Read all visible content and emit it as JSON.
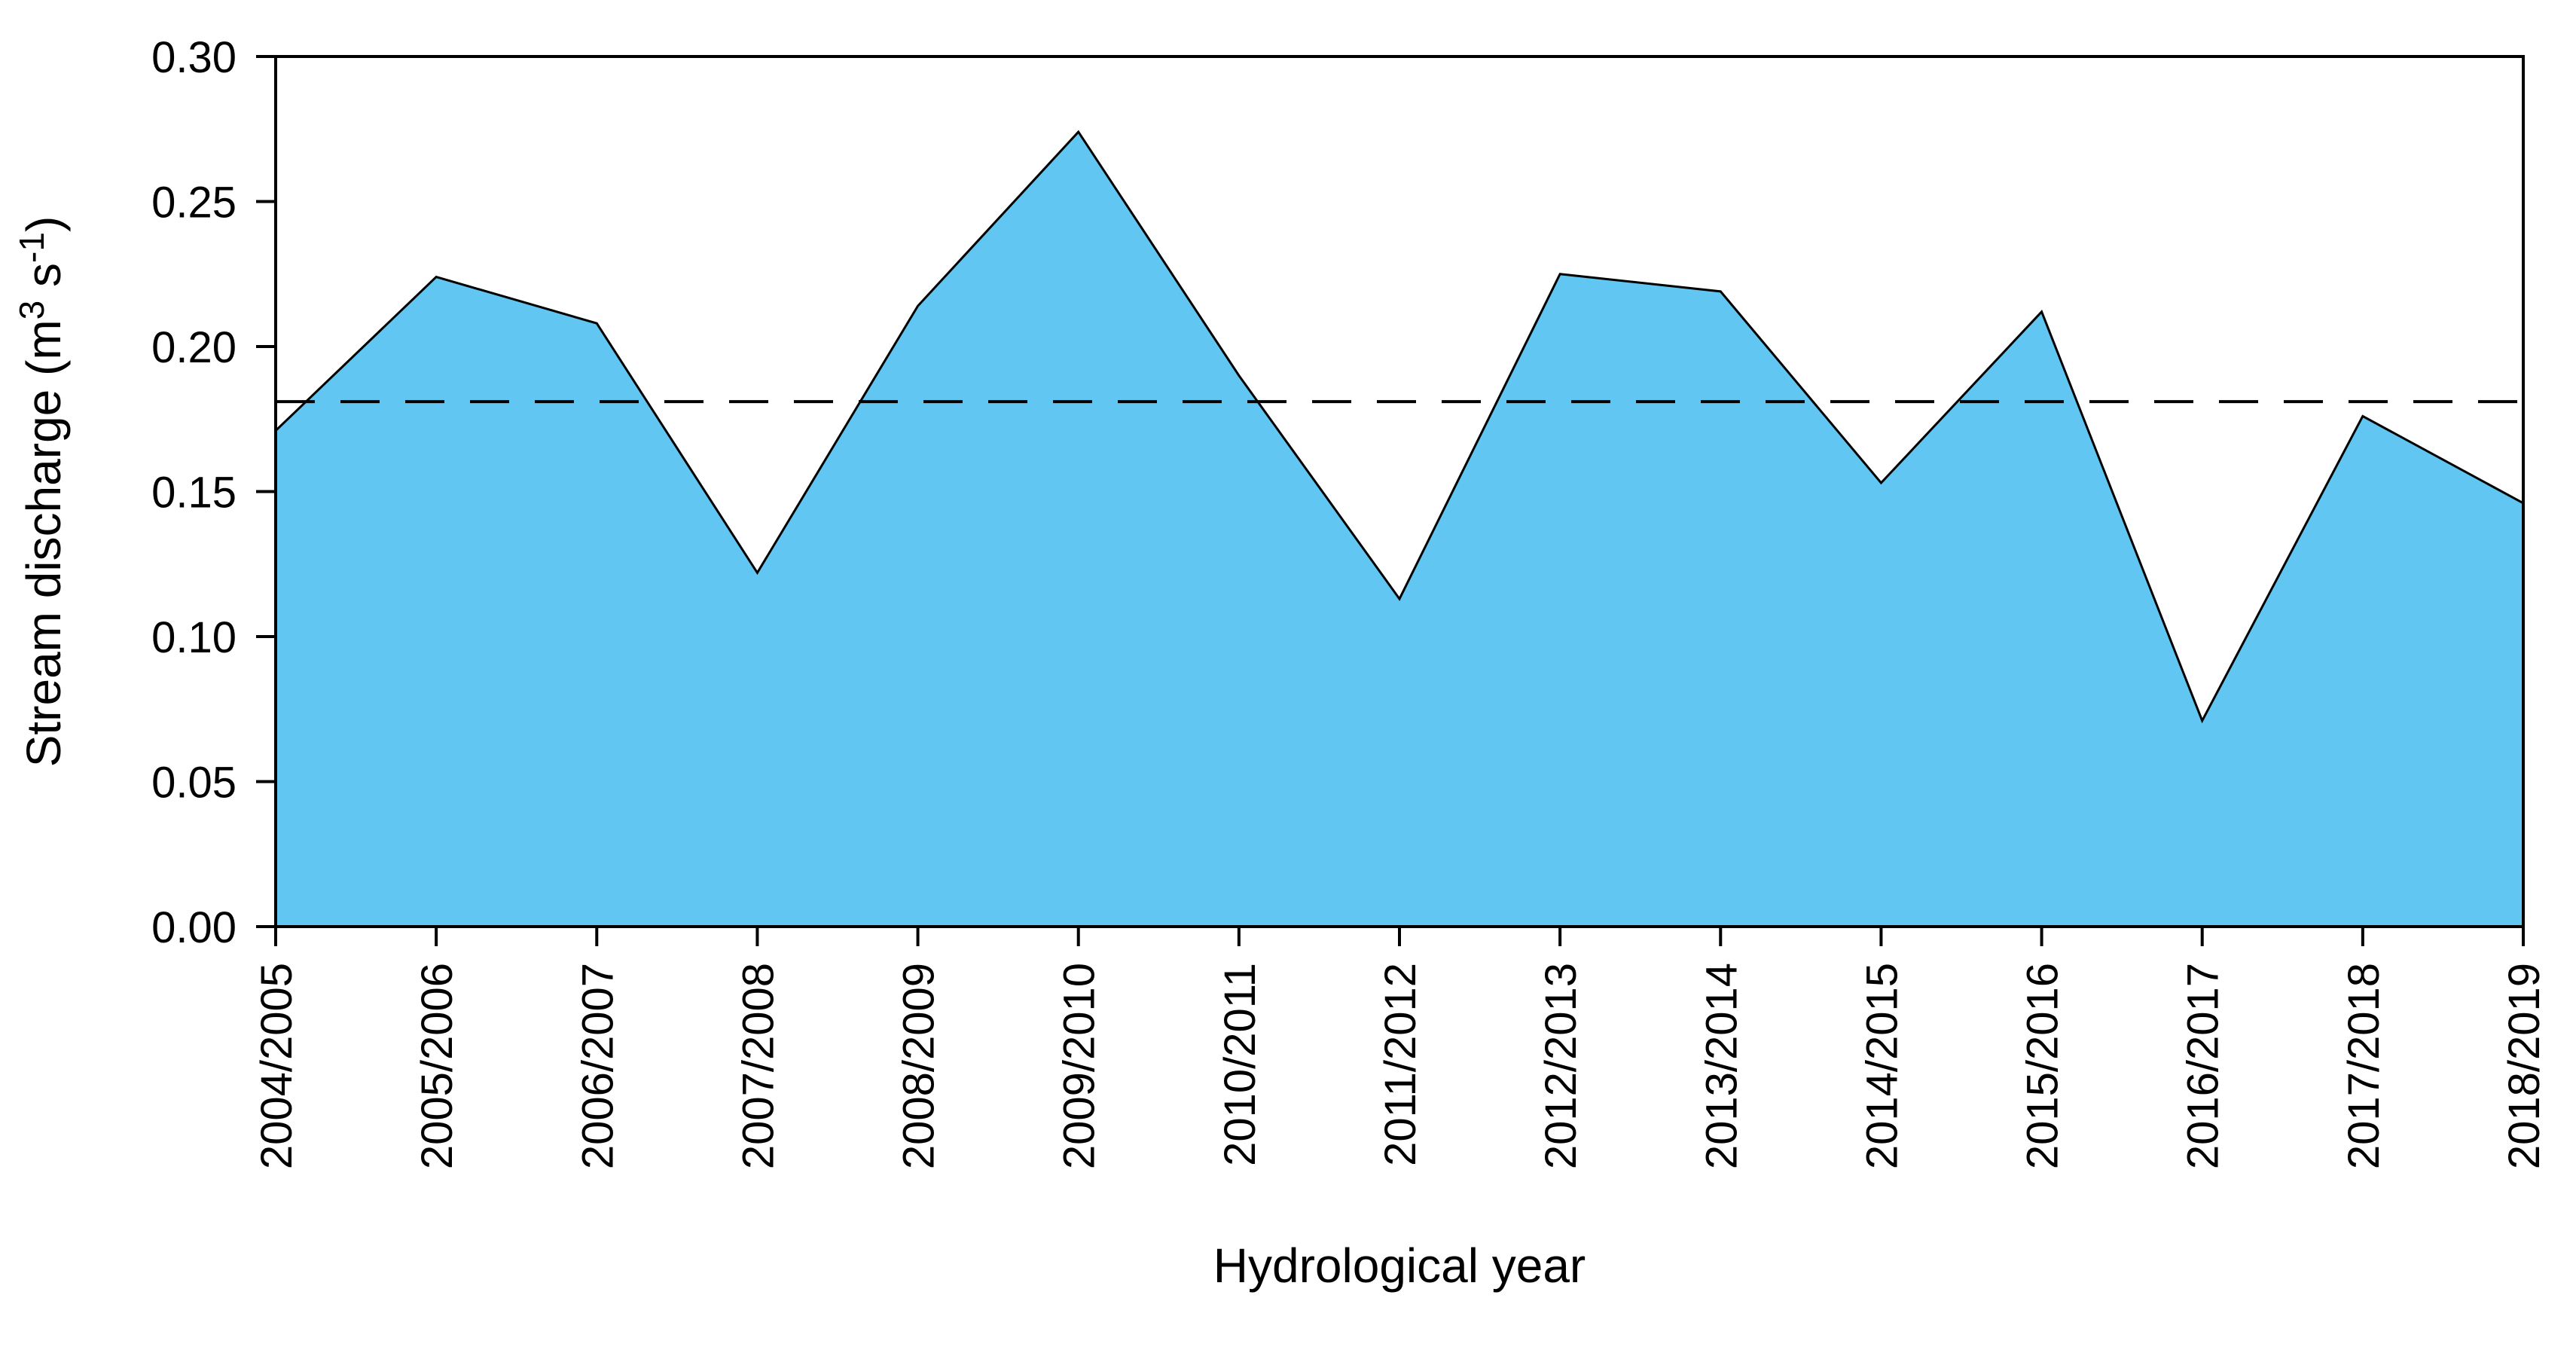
{
  "page": {
    "background": "#FFFFFF"
  },
  "chart_data": {
    "type": "area",
    "title": "",
    "xlabel": "Hydrological year",
    "ylabel": "Stream discharge (m3 s-1)",
    "ylabel_rich": [
      {
        "text": "Stream discharge (m",
        "sup": false
      },
      {
        "text": "3",
        "sup": true
      },
      {
        "text": " s",
        "sup": false
      },
      {
        "text": "-1",
        "sup": true
      },
      {
        "text": ")",
        "sup": false
      }
    ],
    "categories": [
      "2004/2005",
      "2005/2006",
      "2006/2007",
      "2007/2008",
      "2008/2009",
      "2009/2010",
      "2010/2011",
      "2011/2012",
      "2012/2013",
      "2013/2014",
      "2014/2015",
      "2015/2016",
      "2016/2017",
      "2017/2018",
      "2018/2019"
    ],
    "values": [
      0.171,
      0.224,
      0.208,
      0.122,
      0.214,
      0.274,
      0.19,
      0.113,
      0.225,
      0.219,
      0.153,
      0.212,
      0.071,
      0.176,
      0.146
    ],
    "mean_line_value": 0.181,
    "mean_line_style": "dashed",
    "ylim": [
      0,
      0.3
    ],
    "ytick_step": 0.05,
    "ytick_labels": [
      "0.00",
      "0.05",
      "0.10",
      "0.15",
      "0.20",
      "0.25",
      "0.30"
    ],
    "xtick_label_rotation_deg": -90,
    "grid": false,
    "legend": "none",
    "colors": {
      "area_fill": "#62C6F2",
      "area_stroke": "#000000",
      "axis": "#000000",
      "mean_line": "#000000",
      "text": "#000000"
    }
  }
}
